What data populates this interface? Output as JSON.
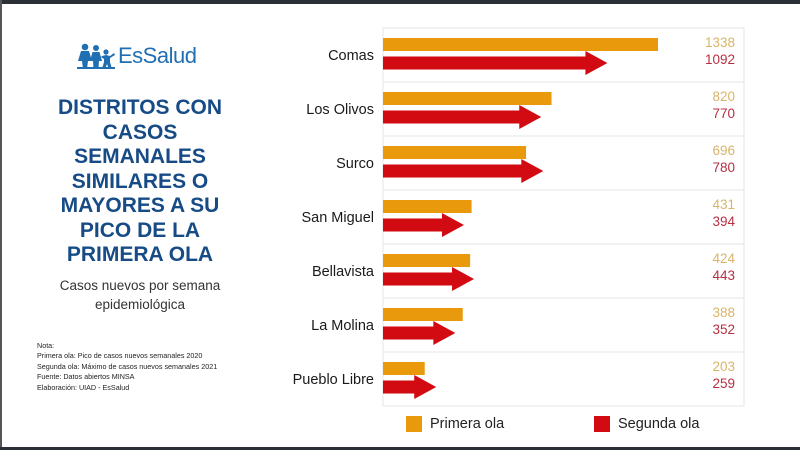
{
  "logo": {
    "text": "EsSalud",
    "icon": "family-icon",
    "color": "#1f6fb2"
  },
  "title_lines": [
    "DISTRITOS CON",
    "CASOS",
    "SEMANALES",
    "SIMILARES O",
    "MAYORES A SU",
    "PICO DE LA",
    "PRIMERA OLA"
  ],
  "subtitle_lines": [
    "Casos nuevos por semana",
    "epidemiológica"
  ],
  "notes": [
    "Nota:",
    "Primera ola: Pico de casos nuevos semanales 2020",
    "Segunda ola: Máximo de casos nuevos semanales 2021",
    "Fuente: Datos abiertos MINSA",
    "Elaboración: UIAD - EsSalud"
  ],
  "chart_data": {
    "type": "bar",
    "orientation": "horizontal",
    "title": "DISTRITOS CON CASOS SEMANALES SIMILARES O MAYORES A SU PICO DE LA PRIMERA OLA",
    "subtitle": "Casos nuevos por semana epidemiológica",
    "categories": [
      "Comas",
      "Los Olivos",
      "Surco",
      "San Miguel",
      "Bellavista",
      "La Molina",
      "Pueblo Libre"
    ],
    "series": [
      {
        "name": "Primera ola",
        "color": "#e89a0c",
        "label_color": "#d9b56a",
        "marker": "bar",
        "values": [
          1338,
          820,
          696,
          431,
          424,
          388,
          203
        ]
      },
      {
        "name": "Segunda ola",
        "color": "#d20a11",
        "label_color": "#b53042",
        "marker": "arrow",
        "values": [
          1092,
          770,
          780,
          394,
          443,
          352,
          259
        ]
      }
    ],
    "xlabel": "",
    "ylabel": "",
    "xlim": [
      0,
      1338
    ],
    "grid": false,
    "legend_position": "bottom"
  },
  "legend": [
    {
      "label": "Primera ola",
      "color": "#e89a0c"
    },
    {
      "label": "Segunda ola",
      "color": "#d20a11"
    }
  ]
}
